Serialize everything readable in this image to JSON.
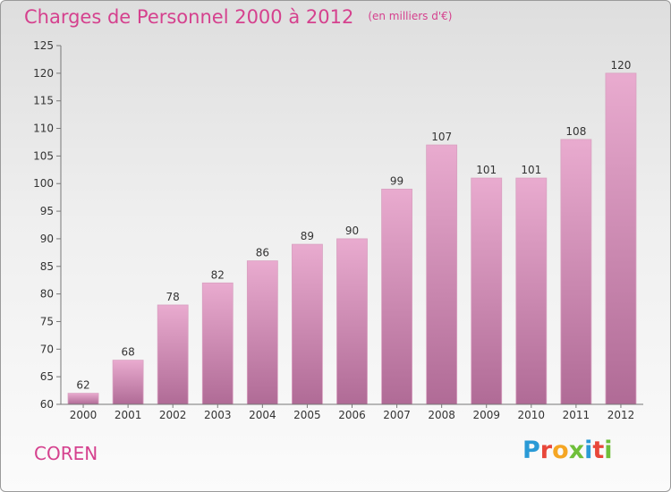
{
  "header": {
    "title": "Charges de Personnel 2000 à 2012",
    "subtitle": "(en milliers d'€)"
  },
  "footer": {
    "commune": "COREN",
    "logo_text": "Proxiti"
  },
  "colors": {
    "title": "#d5418e",
    "bar_top": "#e7a9cc",
    "bar_bottom": "#b06b95",
    "logo": [
      "#2a9ad6",
      "#e8473a",
      "#f5a623",
      "#6fbf3a",
      "#2a9ad6",
      "#e8473a",
      "#6fbf3a"
    ]
  },
  "chart_data": {
    "type": "bar",
    "title": "Charges de Personnel 2000 à 2012",
    "subtitle": "(en milliers d'€)",
    "categories": [
      "2000",
      "2001",
      "2002",
      "2003",
      "2004",
      "2005",
      "2006",
      "2007",
      "2008",
      "2009",
      "2010",
      "2011",
      "2012"
    ],
    "values": [
      62,
      68,
      78,
      82,
      86,
      89,
      90,
      99,
      107,
      101,
      101,
      108,
      120
    ],
    "ylim": [
      60,
      125
    ],
    "yticks": [
      60,
      65,
      70,
      75,
      80,
      85,
      90,
      95,
      100,
      105,
      110,
      115,
      120,
      125
    ],
    "grid": false,
    "legend": "none"
  }
}
